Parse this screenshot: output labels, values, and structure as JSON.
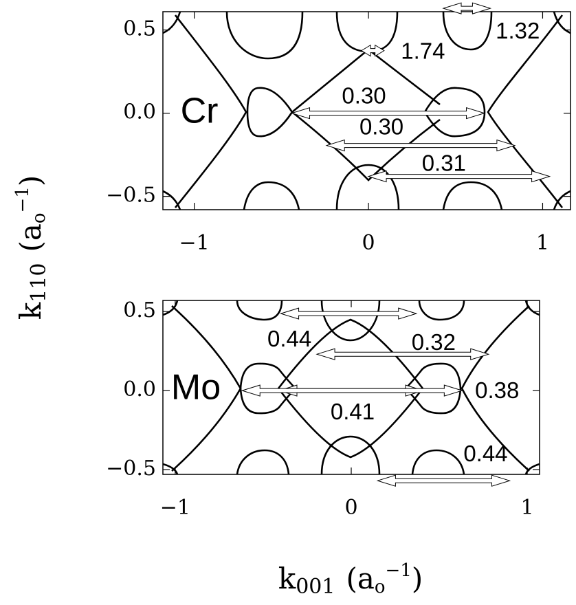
{
  "figure": {
    "ylabel": [
      "k",
      "110",
      "(a",
      "o",
      "−1",
      ")"
    ],
    "xlabel": [
      "k",
      "001",
      "(a",
      "o",
      "−1",
      ")"
    ]
  },
  "chart_data": [
    {
      "type": "contour",
      "label": "Cr",
      "xlim": [
        -1.18,
        1.16
      ],
      "ylim": [
        -0.58,
        0.61
      ],
      "xticks": [
        {
          "value": -1,
          "label": "−1"
        },
        0,
        1
      ],
      "yticks": [
        {
          "value": -0.5,
          "label": "−0.5"
        },
        {
          "value": 0,
          "label": "0.0"
        },
        0.5
      ],
      "arrows": [
        {
          "text": "1.32",
          "x": [
            0.43,
            0.7
          ],
          "y": 0.63
        },
        {
          "text": "1.74",
          "x": [
            -0.04,
            0.09
          ],
          "y": 0.376
        },
        {
          "text": "0.30",
          "x": [
            -0.44,
            0.665
          ],
          "y": 0
        },
        {
          "text": "0.30",
          "x": [
            -0.24,
            0.84
          ],
          "y": -0.194
        },
        {
          "text": "0.31",
          "x": [
            0,
            1.04
          ],
          "y": -0.38
        }
      ]
    },
    {
      "type": "contour",
      "label": "Mo",
      "xlim": [
        -1.07,
        1.07
      ],
      "ylim": [
        -0.53,
        0.57
      ],
      "xticks": [
        {
          "value": -1,
          "label": "−1"
        },
        0,
        1
      ],
      "yticks": [
        {
          "value": -0.5,
          "label": "−0.5"
        },
        {
          "value": 0,
          "label": "0.0"
        },
        0.5
      ],
      "arrows": [
        {
          "text": "0.44",
          "x": [
            -0.4,
            0.37
          ],
          "y": 0.487
        },
        {
          "text": "0.32",
          "x": [
            -0.195,
            0.78
          ],
          "y": 0.23
        },
        {
          "text": "0.41",
          "x": [
            -0.41,
            0.41
          ],
          "y": 0
        },
        {
          "text": "0.38",
          "x": [
            -0.62,
            0.63
          ],
          "y": 0
        },
        {
          "text": "0.44",
          "x": [
            0.15,
            0.9
          ],
          "y": -0.57
        }
      ]
    }
  ]
}
